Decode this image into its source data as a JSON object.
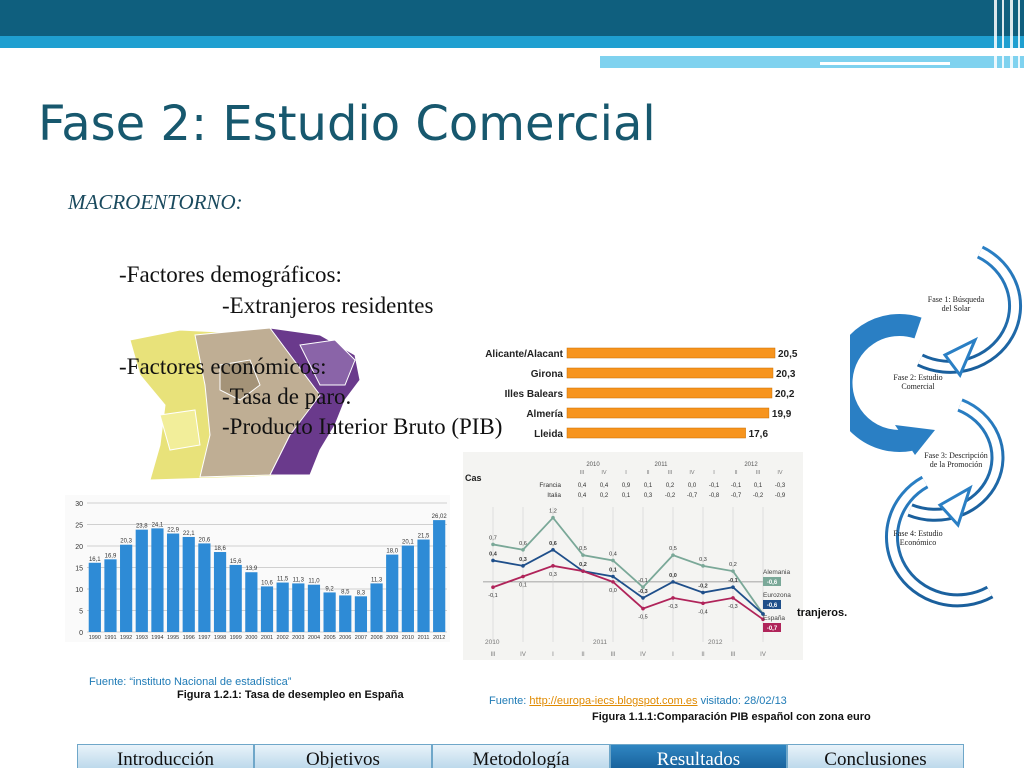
{
  "slide": {
    "title": "Fase 2: Estudio Comercial",
    "subtitle": "MACROENTORNO:",
    "bullets": [
      "-Factores demográficos:",
      "-Extranjeros residentes",
      "-Factores económicos:",
      "-Tasa de paro.",
      "-Producto Interior Bruto (PIB)"
    ]
  },
  "colors": {
    "header_dark": "#0f5f7e",
    "header_light": "#1f9fd0",
    "title": "#17586e",
    "bar_blue": "#2e8bd6",
    "bar_orange": "#f7941d",
    "tab_active": "#1f6aa5"
  },
  "phases": [
    {
      "label_line1": "Fase 1: Búsqueda",
      "label_line2": "del Solar"
    },
    {
      "label_line1": "Fase 2: Estudio",
      "label_line2": "Comercial"
    },
    {
      "label_line1": "Fase 3: Descripción",
      "label_line2": "de la     Promoción"
    },
    {
      "label_line1": "Fase 4: Estudio",
      "label_line2": "Económico"
    }
  ],
  "figure_unemployment": {
    "source": "Fuente: “instituto Nacional de estadística”",
    "caption": "Figura 1.2.1: Tasa de desempleo en España"
  },
  "figure_pib": {
    "source_prefix": "Fuente: ",
    "source_link": "http://europa-iecs.blogspot.com.es",
    "source_suffix": "  visitado: 28/02/13",
    "caption": "Figura 1.1.1:Comparación PIB español con zona euro",
    "partial_text_left": "Cas",
    "partial_text_right": "tranjeros."
  },
  "chart_data": [
    {
      "type": "bar",
      "title": "",
      "categories": [
        "1990",
        "1991",
        "1992",
        "1993",
        "1994",
        "1995",
        "1996",
        "1997",
        "1998",
        "1999",
        "2000",
        "2001",
        "2002",
        "2003",
        "2004",
        "2005",
        "2006",
        "2007",
        "2008",
        "2009",
        "2010",
        "2011",
        "2012"
      ],
      "values": [
        16.1,
        16.9,
        20.3,
        23.8,
        24.1,
        22.9,
        22.1,
        20.6,
        18.6,
        15.6,
        13.9,
        10.6,
        11.5,
        11.3,
        11.0,
        9.2,
        8.5,
        8.3,
        11.3,
        18.0,
        20.1,
        21.5,
        26.02
      ],
      "value_labels": [
        "16,1",
        "16,9",
        "20,3",
        "23,8",
        "24,1",
        "22,9",
        "22,1",
        "20,6",
        "18,6",
        "15,6",
        "13,9",
        "10,6",
        "11,5",
        "11,3",
        "11,0",
        "9,2",
        "8,5",
        "8,3",
        "11,3",
        "18,0",
        "20,1",
        "21,5",
        "26,02"
      ],
      "y_ticks": [
        "0",
        "5",
        "10",
        "15",
        "20",
        "25",
        "30"
      ],
      "ylim": [
        0,
        30
      ],
      "grid": true
    },
    {
      "type": "bar",
      "orientation": "horizontal",
      "title": "",
      "categories": [
        "Alicante/Alacant",
        "Girona",
        "Illes Balears",
        "Almería",
        "Lleida"
      ],
      "values": [
        20.5,
        20.3,
        20.2,
        19.9,
        17.6
      ],
      "value_labels": [
        "20,5",
        "20,3",
        "20,2",
        "19,9",
        "17,6"
      ]
    },
    {
      "type": "line",
      "title": "",
      "x": [
        "2010 III",
        "2010 IV",
        "2011 I",
        "2011 II",
        "2011 III",
        "2011 IV",
        "2012 I",
        "2012 II",
        "2012 III",
        "2012 IV"
      ],
      "year_labels": [
        "2010",
        "2011",
        "2012"
      ],
      "quarter_labels": [
        "III",
        "IV",
        "I",
        "II",
        "III",
        "IV",
        "I",
        "II",
        "III",
        "IV"
      ],
      "series": [
        {
          "name": "Alemania",
          "values": [
            0.7,
            0.6,
            1.2,
            0.5,
            0.4,
            -0.1,
            0.5,
            0.3,
            0.2,
            -0.6
          ],
          "end_label": "-0,6",
          "color": "#7aa898",
          "labels": [
            "0,7",
            "0,6",
            "1,2",
            "0,5",
            "0,4",
            "-0,1",
            "0,5",
            "0,3",
            "0,2",
            ""
          ]
        },
        {
          "name": "Eurozona",
          "values": [
            0.4,
            0.3,
            0.6,
            0.2,
            0.1,
            -0.3,
            0.0,
            -0.2,
            -0.1,
            -0.6
          ],
          "end_label": "-0,6",
          "color": "#1f4f8a",
          "labels": [
            "0,4",
            "0,3",
            "0,6",
            "0,2",
            "0,1",
            "-0,3",
            "0,0",
            "-0,2",
            "-0,1",
            ""
          ]
        },
        {
          "name": "España",
          "values": [
            -0.1,
            0.1,
            0.3,
            0.2,
            0.0,
            -0.5,
            -0.3,
            -0.4,
            -0.3,
            -0.7
          ],
          "end_label": "-0,7",
          "color": "#b0245a",
          "labels": [
            "-0,1",
            "0,1",
            "0,3",
            "",
            "0,0",
            "-0,5",
            "-0,3",
            "-0,4",
            "-0,3",
            ""
          ]
        }
      ],
      "table": {
        "years": [
          "2010",
          "2011",
          "2012"
        ],
        "quarters": [
          "III",
          "IV",
          "I",
          "II",
          "III",
          "IV",
          "I",
          "II",
          "III",
          "IV"
        ],
        "rows": [
          {
            "name": "Francia",
            "cells": [
              "0,4",
              "0,4",
              "0,9",
              "0,1",
              "0,2",
              "0,0",
              "-0,1",
              "-0,1",
              "0,1",
              "-0,3"
            ]
          },
          {
            "name": "Italia",
            "cells": [
              "0,4",
              "0,2",
              "0,1",
              "0,3",
              "-0,2",
              "-0,7",
              "-0,8",
              "-0,7",
              "-0,2",
              "-0,9"
            ]
          }
        ]
      }
    }
  ],
  "nav_tabs": [
    {
      "label": "Introducción",
      "active": false
    },
    {
      "label": "Objetivos",
      "active": false
    },
    {
      "label": "Metodología",
      "active": false
    },
    {
      "label": "Resultados",
      "active": true
    },
    {
      "label": "Conclusiones",
      "active": false
    }
  ]
}
